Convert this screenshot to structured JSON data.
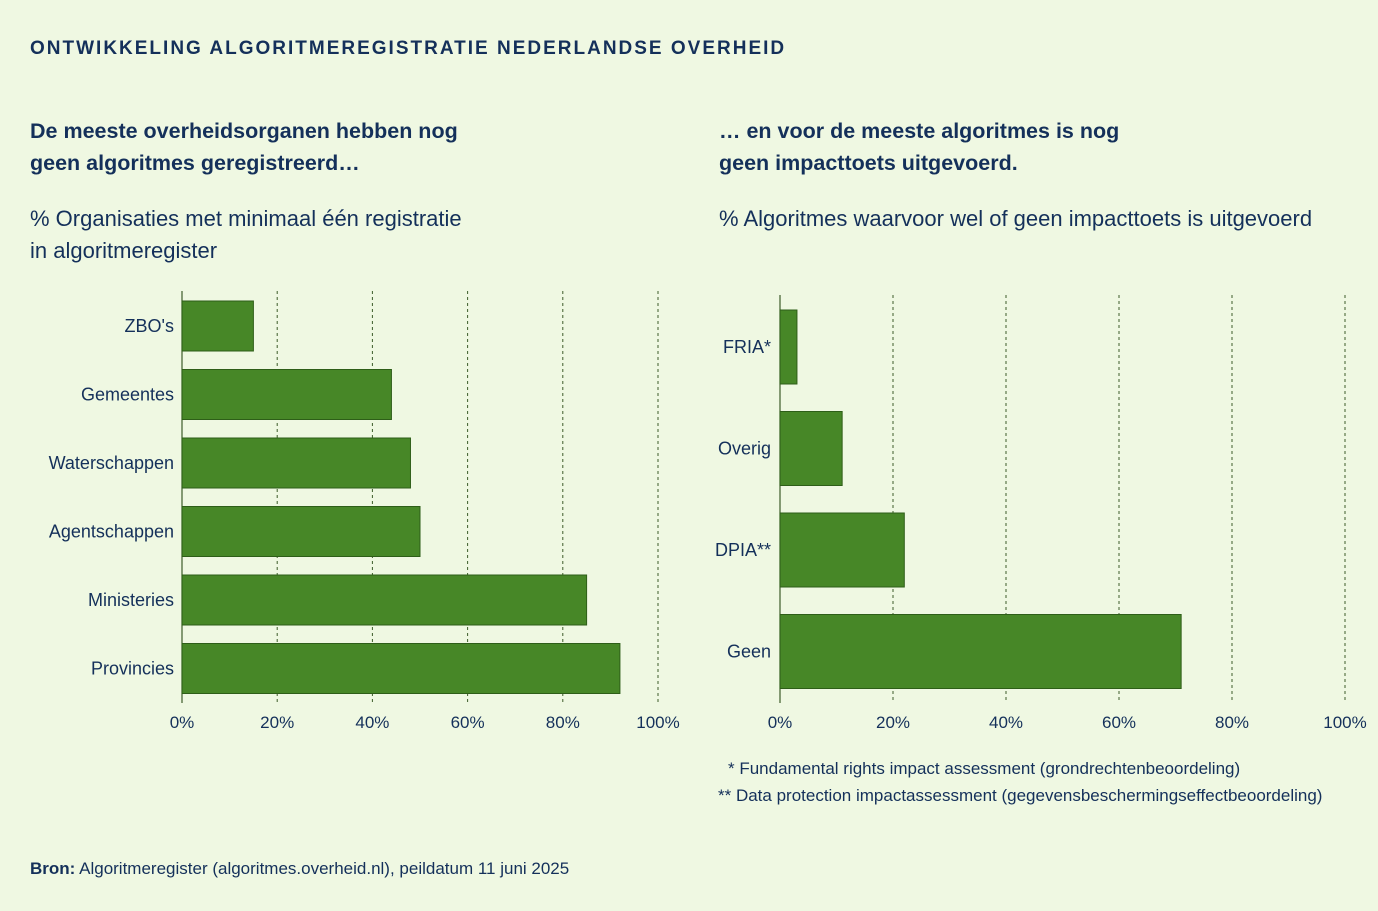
{
  "title": "ONTWIKKELING ALGORITMEREGISTRATIE NEDERLANDSE OVERHEID",
  "left_panel": {
    "heading_line1": "De meeste overheidsorganen hebben nog",
    "heading_line2": "geen algoritmes geregistreerd…",
    "subtitle_line1": "% Organisaties met minimaal één registratie",
    "subtitle_line2": "in algoritmeregister"
  },
  "right_panel": {
    "heading_line1": "… en voor de meeste algoritmes is nog",
    "heading_line2": "geen impacttoets uitgevoerd.",
    "subtitle_line1": "% Algoritmes waarvoor wel of geen impacttoets is uitgevoerd"
  },
  "footnotes": {
    "fria": "* Fundamental rights impact assessment (grondrechtenbeoordeling)",
    "dpia": "** Data protection impactassessment (gegevensbeschermingseffectbeoordeling)"
  },
  "source": {
    "label": "Bron:",
    "text": "Algoritmeregister (algoritmes.overheid.nl), peildatum 11 juni 2025"
  },
  "colors": {
    "background": "#eff8e2",
    "bar": "#478727",
    "bar_stroke": "#2e5e18",
    "text": "#14305a",
    "grid": "#3d5c2a"
  },
  "chart_data": [
    {
      "type": "bar",
      "orientation": "horizontal",
      "title": "% Organisaties met minimaal één registratie in algoritmeregister",
      "categories": [
        "ZBO's",
        "Gemeentes",
        "Waterschappen",
        "Agentschappen",
        "Ministeries",
        "Provincies"
      ],
      "values": [
        15,
        44,
        48,
        50,
        85,
        92
      ],
      "xlim": [
        0,
        100
      ],
      "xticks": [
        "0%",
        "20%",
        "40%",
        "60%",
        "80%",
        "100%"
      ],
      "tick_values": [
        0,
        20,
        40,
        60,
        80,
        100
      ],
      "grid": true
    },
    {
      "type": "bar",
      "orientation": "horizontal",
      "title": "% Algoritmes waarvoor wel of geen impacttoets is uitgevoerd",
      "categories": [
        "FRIA*",
        "Overig",
        "DPIA**",
        "Geen"
      ],
      "values": [
        3,
        11,
        22,
        71
      ],
      "xlim": [
        0,
        100
      ],
      "xticks": [
        "0%",
        "20%",
        "40%",
        "60%",
        "80%",
        "100%"
      ],
      "tick_values": [
        0,
        20,
        40,
        60,
        80,
        100
      ],
      "grid": true
    }
  ]
}
